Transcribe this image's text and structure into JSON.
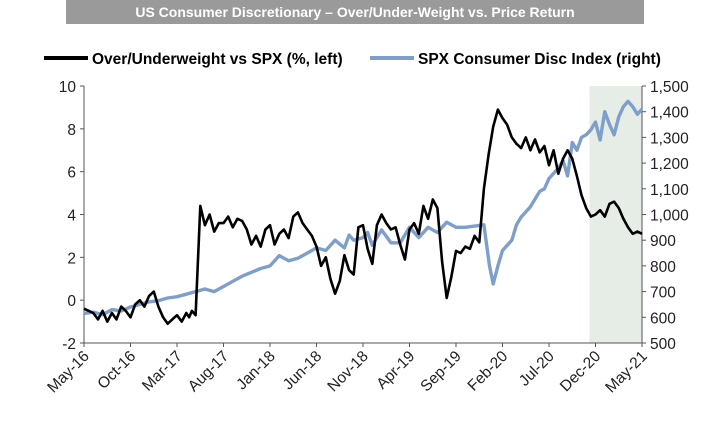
{
  "title": "US Consumer Discretionary – Over/Under-Weight vs. Price Return",
  "legend": {
    "left_series": "Over/Underweight vs SPX (%, left)",
    "right_series": "SPX Consumer Disc Index (right)"
  },
  "colors": {
    "title_bg": "#9a9a9a",
    "left_series": "#000000",
    "right_series": "#7e9fc9",
    "shade": "#e6ece6"
  },
  "chart_data": {
    "type": "line",
    "x_tick_labels": [
      "May-16",
      "Oct-16",
      "Mar-17",
      "Aug-17",
      "Jan-18",
      "Jun-18",
      "Nov-18",
      "Apr-19",
      "Sep-19",
      "Feb-20",
      "Jul-20",
      "Dec-20",
      "May-21"
    ],
    "x_range": [
      "May-16",
      "May-21"
    ],
    "y_left": {
      "ticks": [
        -2,
        0,
        2,
        4,
        6,
        8,
        10
      ],
      "range": [
        -2,
        10
      ]
    },
    "y_right": {
      "ticks": [
        "500",
        "600",
        "700",
        "800",
        "900",
        "1,000",
        "1,100",
        "1,200",
        "1,300",
        "1,400",
        "1,500"
      ],
      "range": [
        500,
        1500
      ]
    },
    "shaded_region": {
      "from": "Dec-20",
      "to": "May-21"
    },
    "series": [
      {
        "name": "Over/Underweight vs SPX (%, left)",
        "axis": "left",
        "x": [
          0,
          1,
          1.5,
          2,
          2.5,
          3,
          3.5,
          4,
          4.5,
          5,
          5.5,
          6,
          6.5,
          7,
          7.5,
          8,
          8.5,
          9,
          9.5,
          10,
          10.5,
          11,
          11.3,
          11.6,
          12,
          12.5,
          13,
          13.5,
          14,
          14.5,
          15,
          15.5,
          16,
          16.5,
          17,
          17.5,
          18,
          18.5,
          19,
          19.5,
          20,
          20.5,
          21,
          21.5,
          22,
          22.5,
          23,
          23.5,
          24,
          24.5,
          25,
          25.5,
          26,
          26.5,
          27,
          27.5,
          28,
          28.5,
          29,
          29.5,
          30,
          30.5,
          31,
          31.5,
          32,
          32.5,
          33,
          33.5,
          34,
          34.5,
          35,
          35.5,
          36,
          36.5,
          37,
          37.5,
          38,
          38.5,
          39,
          39.5,
          40,
          40.5,
          41,
          41.5,
          42,
          42.5,
          43,
          43.5,
          44,
          44.5,
          45,
          45.5,
          46,
          46.5,
          47,
          47.5,
          48,
          48.5,
          49,
          49.5,
          50,
          50.5,
          51,
          51.5,
          52,
          52.5,
          53,
          53.5,
          54,
          54.5,
          55,
          55.5,
          56,
          56.5,
          57,
          57.5,
          58,
          58.5,
          59,
          59.5,
          60
        ],
        "values": [
          -0.4,
          -0.6,
          -0.9,
          -0.5,
          -1.0,
          -0.6,
          -0.9,
          -0.3,
          -0.5,
          -0.8,
          -0.2,
          0.0,
          -0.3,
          0.2,
          0.4,
          -0.3,
          -0.8,
          -1.1,
          -0.9,
          -0.7,
          -1.0,
          -0.6,
          -0.8,
          -0.5,
          -0.7,
          4.4,
          3.5,
          4.0,
          3.2,
          3.6,
          3.6,
          3.9,
          3.4,
          3.8,
          3.7,
          3.3,
          2.6,
          3.0,
          2.5,
          3.3,
          3.5,
          2.6,
          3.1,
          3.3,
          2.9,
          3.9,
          4.1,
          3.6,
          3.3,
          3.0,
          2.5,
          1.6,
          2.0,
          1.0,
          0.3,
          0.9,
          2.1,
          1.4,
          1.2,
          3.4,
          3.5,
          2.4,
          1.7,
          3.5,
          4.0,
          3.6,
          3.3,
          3.4,
          2.6,
          1.9,
          3.3,
          3.6,
          3.1,
          4.4,
          3.8,
          4.7,
          4.3,
          1.8,
          0.1,
          1.1,
          2.3,
          2.2,
          2.5,
          2.4,
          3.0,
          2.7,
          5.2,
          6.8,
          8.1,
          8.9,
          8.5,
          8.2,
          7.6,
          7.3,
          7.1,
          7.6,
          7.0,
          7.5,
          6.9,
          7.2,
          6.3,
          7.0,
          5.9,
          6.6,
          7.0,
          6.6,
          5.8,
          4.9,
          4.3,
          3.9,
          4.0,
          4.2,
          3.9,
          4.5,
          4.6,
          4.3,
          3.8,
          3.4,
          3.1,
          3.2,
          3.1
        ]
      },
      {
        "name": "SPX Consumer Disc Index (right)",
        "axis": "right",
        "x": [
          0,
          1,
          2,
          3,
          4,
          5,
          6,
          7,
          8,
          9,
          10,
          11,
          12,
          13,
          14,
          15,
          16,
          17,
          18,
          19,
          20,
          21,
          21.5,
          22,
          23,
          24,
          25,
          26,
          27,
          28,
          28.5,
          29,
          30,
          30.5,
          31,
          32,
          33,
          34,
          35,
          36,
          37,
          38,
          39,
          40,
          41,
          42,
          43,
          43.3,
          43.6,
          44,
          44.5,
          45,
          46,
          46.5,
          47,
          47.5,
          48,
          48.5,
          49,
          49.5,
          50,
          50.5,
          51,
          51.5,
          52,
          52.5,
          53,
          53.5,
          54,
          54.5,
          55,
          55.5,
          56,
          56.5,
          57,
          57.5,
          58,
          58.5,
          59,
          59.5,
          60
        ],
        "values": [
          615,
          620,
          610,
          630,
          625,
          640,
          650,
          660,
          665,
          675,
          680,
          690,
          700,
          710,
          700,
          720,
          740,
          760,
          775,
          790,
          800,
          840,
          830,
          820,
          830,
          850,
          870,
          860,
          900,
          870,
          920,
          900,
          910,
          930,
          880,
          940,
          890,
          890,
          950,
          910,
          950,
          930,
          970,
          950,
          950,
          955,
          960,
          880,
          800,
          730,
          800,
          860,
          900,
          960,
          990,
          1010,
          1030,
          1060,
          1090,
          1100,
          1140,
          1160,
          1180,
          1210,
          1150,
          1280,
          1250,
          1300,
          1310,
          1330,
          1360,
          1290,
          1400,
          1350,
          1310,
          1380,
          1420,
          1440,
          1420,
          1390,
          1410
        ]
      }
    ]
  }
}
